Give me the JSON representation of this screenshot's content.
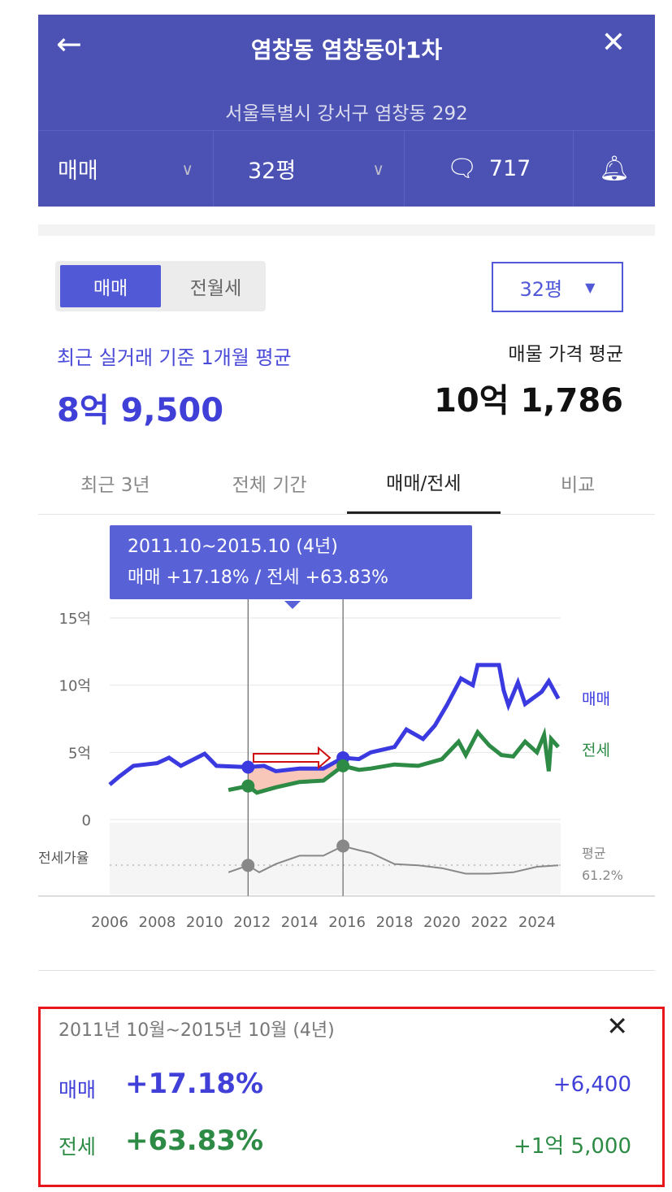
{
  "header": {
    "title": "염창동 염창동아1차",
    "address": "서울특별시 강서구 염창동 292",
    "trade_type": "매매",
    "size": "32평",
    "comment_count": "717"
  },
  "toggle": {
    "sale": "매매",
    "rent": "전월세"
  },
  "size_select": "32평",
  "recent": {
    "label": "최근 실거래 기준 1개월 평균",
    "value": "8억 9,500"
  },
  "listing": {
    "label": "매물 가격 평균",
    "value": "10억 1,786"
  },
  "tabs": [
    "최근 3년",
    "전체 기간",
    "매매/전세",
    "비교"
  ],
  "tooltip": {
    "line1": "2011.10~2015.10 (4년)",
    "line2": "매매 +17.18%  /  전세 +63.83%"
  },
  "colors": {
    "accent": "#4b52b4",
    "sale": "#3a3ae0",
    "jeonse": "#2e8b46",
    "ratio": "#888888",
    "highlight": "#e8151b"
  },
  "chart_data": {
    "type": "line",
    "y_ticks": [
      "15억",
      "10억",
      "5억",
      "0"
    ],
    "y_tick_values": [
      15,
      10,
      5,
      0
    ],
    "x_ticks": [
      "2006",
      "2008",
      "2010",
      "2012",
      "2014",
      "2016",
      "2018",
      "2020",
      "2022",
      "2024"
    ],
    "xlim": [
      2006,
      2025
    ],
    "ylim": [
      0,
      15
    ],
    "ratio_label": "전세가율",
    "ratio_avg_label": "평균",
    "ratio_avg": "61.2%",
    "series": [
      {
        "name": "매매",
        "points": [
          [
            2006.0,
            2.6
          ],
          [
            2006.4,
            3.2
          ],
          [
            2007.0,
            4.0
          ],
          [
            2008.0,
            4.2
          ],
          [
            2008.5,
            4.6
          ],
          [
            2009.0,
            4.0
          ],
          [
            2010.0,
            4.9
          ],
          [
            2010.5,
            4.0
          ],
          [
            2011.83,
            3.9
          ],
          [
            2012.5,
            4.0
          ],
          [
            2013.0,
            3.6
          ],
          [
            2014.0,
            3.8
          ],
          [
            2015.0,
            3.8
          ],
          [
            2015.83,
            4.6
          ],
          [
            2016.5,
            4.5
          ],
          [
            2017.0,
            5.0
          ],
          [
            2018.0,
            5.4
          ],
          [
            2018.5,
            6.7
          ],
          [
            2019.2,
            6.0
          ],
          [
            2019.7,
            7.0
          ],
          [
            2020.2,
            8.5
          ],
          [
            2020.8,
            10.5
          ],
          [
            2021.3,
            10.0
          ],
          [
            2021.5,
            11.5
          ],
          [
            2022.4,
            11.5
          ],
          [
            2022.6,
            9.6
          ],
          [
            2022.8,
            8.5
          ],
          [
            2023.2,
            10.2
          ],
          [
            2023.5,
            8.6
          ],
          [
            2024.2,
            9.5
          ],
          [
            2024.5,
            10.3
          ],
          [
            2024.9,
            9.0
          ]
        ]
      },
      {
        "name": "전세",
        "points": [
          [
            2011.0,
            2.2
          ],
          [
            2011.83,
            2.5
          ],
          [
            2012.2,
            2.0
          ],
          [
            2013.0,
            2.4
          ],
          [
            2014.0,
            2.8
          ],
          [
            2015.0,
            2.9
          ],
          [
            2015.83,
            4.0
          ],
          [
            2016.5,
            3.7
          ],
          [
            2017.0,
            3.8
          ],
          [
            2018.0,
            4.1
          ],
          [
            2019.0,
            4.0
          ],
          [
            2020.0,
            4.5
          ],
          [
            2020.7,
            5.8
          ],
          [
            2021.0,
            4.8
          ],
          [
            2021.5,
            6.5
          ],
          [
            2022.0,
            5.5
          ],
          [
            2022.5,
            4.8
          ],
          [
            2023.0,
            4.7
          ],
          [
            2023.5,
            5.8
          ],
          [
            2024.0,
            5.0
          ],
          [
            2024.3,
            6.3
          ],
          [
            2024.5,
            3.6
          ],
          [
            2024.6,
            6.0
          ],
          [
            2024.9,
            5.4
          ]
        ]
      },
      {
        "name": "전세가율",
        "points": [
          [
            2011.0,
            56
          ],
          [
            2011.83,
            61
          ],
          [
            2012.3,
            56
          ],
          [
            2013.0,
            62
          ],
          [
            2014.0,
            68
          ],
          [
            2015.0,
            68
          ],
          [
            2015.83,
            75
          ],
          [
            2016.5,
            72
          ],
          [
            2017.0,
            70
          ],
          [
            2018.0,
            62
          ],
          [
            2019.0,
            61
          ],
          [
            2020.0,
            59
          ],
          [
            2021.0,
            55
          ],
          [
            2022.0,
            55
          ],
          [
            2023.0,
            56
          ],
          [
            2024.0,
            60
          ],
          [
            2024.9,
            61
          ]
        ]
      }
    ],
    "selection": [
      2011.83,
      2015.83
    ]
  },
  "summary": {
    "period": "2011년 10월~2015년 10월 (4년)",
    "sale_label": "매매",
    "sale_pct": "+17.18%",
    "sale_amount": "+6,400",
    "jeonse_label": "전세",
    "jeonse_pct": "+63.83%",
    "jeonse_amount": "+1억 5,000"
  }
}
